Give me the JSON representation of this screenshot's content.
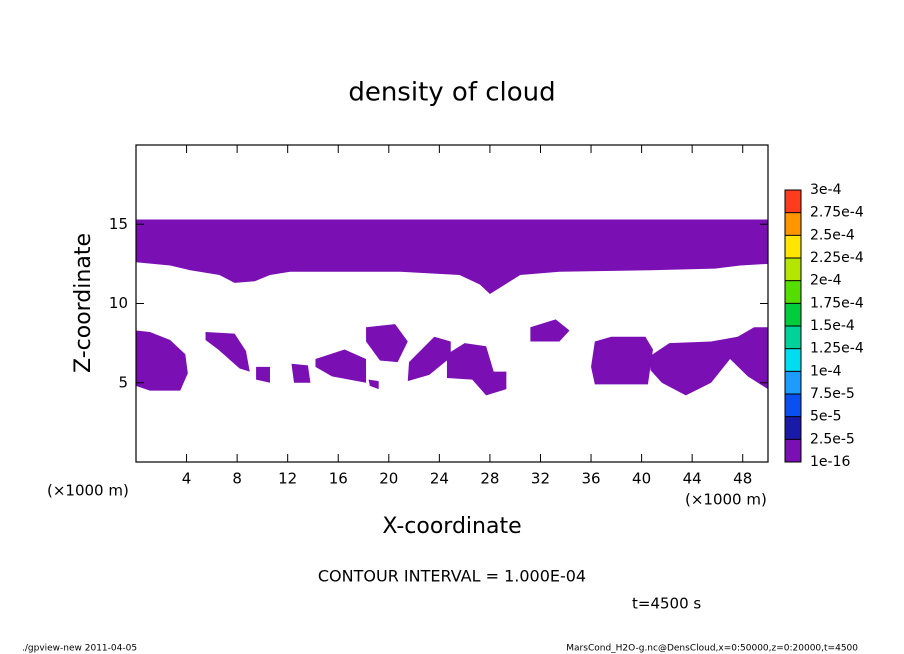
{
  "chart_data": {
    "type": "contour",
    "title": "density of cloud",
    "x_label": "X-coordinate",
    "y_label": "Z-coordinate",
    "y_units_label": "(×1000 m)",
    "x_units_label": "(×1000 m)",
    "xlim": [
      0,
      50
    ],
    "ylim": [
      0,
      20
    ],
    "xticks": [
      4,
      8,
      12,
      16,
      20,
      24,
      28,
      32,
      36,
      40,
      44,
      48
    ],
    "yticks": [
      5,
      10,
      15
    ],
    "fills": [
      {
        "color": "#7a0fb4",
        "x": [
          0,
          50,
          50,
          47.8,
          45.8,
          40.7,
          33.5,
          30.4,
          29.2,
          28.0,
          27.2,
          25.6,
          20.9,
          12.2,
          10.6,
          9.4,
          7.8,
          6.6,
          4.3,
          2.7,
          0
        ],
        "z": [
          15.3,
          15.3,
          12.5,
          12.4,
          12.2,
          12.1,
          12.0,
          11.8,
          11.2,
          10.6,
          11.2,
          11.8,
          12.0,
          12.0,
          11.8,
          11.4,
          11.3,
          11.8,
          12.1,
          12.4,
          12.6
        ]
      },
      {
        "color": "#7a0fb4",
        "x": [
          0,
          1.1,
          2.7,
          3.9,
          4.1,
          3.5,
          1.1,
          0
        ],
        "z": [
          8.3,
          8.2,
          7.7,
          6.8,
          5.6,
          4.5,
          4.5,
          4.8
        ]
      },
      {
        "color": "#7a0fb4",
        "x": [
          5.5,
          7.8,
          8.7,
          9.0,
          8.2,
          6.5,
          5.5
        ],
        "z": [
          8.2,
          8.1,
          7.0,
          5.7,
          5.9,
          7.1,
          7.7
        ]
      },
      {
        "color": "#7a0fb4",
        "x": [
          9.5,
          10.6,
          10.6,
          9.5
        ],
        "z": [
          6.0,
          6.0,
          5.0,
          5.2
        ]
      },
      {
        "color": "#7a0fb4",
        "x": [
          12.3,
          13.6,
          13.8,
          12.5
        ],
        "z": [
          6.2,
          6.1,
          5.0,
          5.0
        ]
      },
      {
        "color": "#7a0fb4",
        "x": [
          14.2,
          16.5,
          18.2,
          18.2,
          15.5,
          14.2
        ],
        "z": [
          6.5,
          7.1,
          6.5,
          5.0,
          5.4,
          6.0
        ]
      },
      {
        "color": "#7a0fb4",
        "x": [
          18.4,
          19.2,
          19.2,
          18.5
        ],
        "z": [
          5.2,
          5.1,
          4.6,
          4.8
        ]
      },
      {
        "color": "#7a0fb4",
        "x": [
          18.2,
          20.5,
          21.5,
          20.7,
          19.3,
          18.2
        ],
        "z": [
          8.5,
          8.7,
          7.6,
          6.3,
          6.4,
          7.6
        ]
      },
      {
        "color": "#7a0fb4",
        "x": [
          21.6,
          23.6,
          24.9,
          24.9,
          23.2,
          21.5
        ],
        "z": [
          6.3,
          7.9,
          7.6,
          6.6,
          5.5,
          5.1
        ]
      },
      {
        "color": "#7a0fb4",
        "x": [
          24.6,
          26.0,
          27.7,
          28.3,
          29.3,
          29.3,
          27.7,
          26.6,
          24.6
        ],
        "z": [
          6.8,
          7.5,
          7.3,
          5.7,
          5.7,
          4.6,
          4.2,
          5.2,
          5.3
        ]
      },
      {
        "color": "#7a0fb4",
        "x": [
          31.2,
          33.2,
          34.3,
          33.5,
          31.2
        ],
        "z": [
          8.5,
          9.0,
          8.3,
          7.6,
          7.6
        ]
      },
      {
        "color": "#7a0fb4",
        "x": [
          36.3,
          37.6,
          40.3,
          40.9,
          40.5,
          36.3,
          36.0
        ],
        "z": [
          7.6,
          7.9,
          7.9,
          7.1,
          4.9,
          4.9,
          6.0
        ]
      },
      {
        "color": "#7a0fb4",
        "x": [
          40.7,
          42.2,
          45.5,
          47.6,
          48.9,
          50,
          50,
          48.4,
          47.0,
          45.5,
          43.5,
          41.6,
          40.7
        ],
        "z": [
          6.7,
          7.5,
          7.6,
          7.9,
          8.5,
          8.5,
          4.6,
          5.4,
          6.5,
          5.0,
          4.2,
          5.0,
          5.8
        ]
      }
    ],
    "colorbar": {
      "levels": [
        {
          "value": 1e-16,
          "label": "1e-16"
        },
        {
          "value": 2.5e-05,
          "label": "2.5e-5"
        },
        {
          "value": 5e-05,
          "label": "5e-5"
        },
        {
          "value": 7.5e-05,
          "label": "7.5e-5"
        },
        {
          "value": 0.0001,
          "label": "1e-4"
        },
        {
          "value": 0.000125,
          "label": "1.25e-4"
        },
        {
          "value": 0.00015,
          "label": "1.5e-4"
        },
        {
          "value": 0.000175,
          "label": "1.75e-4"
        },
        {
          "value": 0.0002,
          "label": "2e-4"
        },
        {
          "value": 0.000225,
          "label": "2.25e-4"
        },
        {
          "value": 0.00025,
          "label": "2.5e-4"
        },
        {
          "value": 0.000275,
          "label": "2.75e-4"
        },
        {
          "value": 0.0003,
          "label": "3e-4"
        }
      ],
      "colors": [
        "#7a0fb4",
        "#1a1aa8",
        "#0a50f0",
        "#1e9bff",
        "#00dcf0",
        "#00d29a",
        "#00cc3c",
        "#55dd00",
        "#b4e600",
        "#ffe600",
        "#ff9600",
        "#ff3c1e",
        "#ff8c8c"
      ]
    },
    "contour_interval": "CONTOUR INTERVAL = 1.000E-04",
    "time_label": "t=4500 s",
    "footer_left": "./gpview-new  2011-04-05",
    "footer_right": "MarsCond_H2O-g.nc@DensCloud,x=0:50000,z=0:20000,t=4500"
  }
}
